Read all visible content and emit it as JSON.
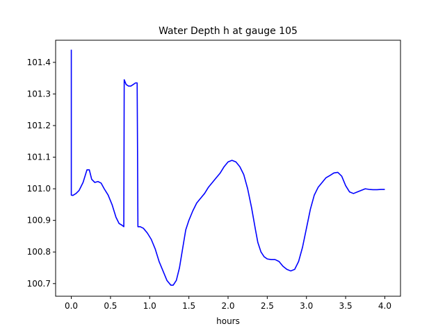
{
  "chart_data": {
    "type": "line",
    "title": "Water Depth h at gauge 105",
    "xlabel": "hours",
    "ylabel": "",
    "xlim": [
      -0.2,
      4.2
    ],
    "ylim": [
      100.66,
      101.47
    ],
    "xticks": [
      0.0,
      0.5,
      1.0,
      1.5,
      2.0,
      2.5,
      3.0,
      3.5,
      4.0
    ],
    "xtick_labels": [
      "0.0",
      "0.5",
      "1.0",
      "1.5",
      "2.0",
      "2.5",
      "3.0",
      "3.5",
      "4.0"
    ],
    "yticks": [
      100.7,
      100.8,
      100.9,
      101.0,
      101.1,
      101.2,
      101.3,
      101.4
    ],
    "ytick_labels": [
      "100.7",
      "100.8",
      "100.9",
      "101.0",
      "101.1",
      "101.2",
      "101.3",
      "101.4"
    ],
    "grid": false,
    "series": [
      {
        "color": "#0000ff",
        "x": [
          0.0,
          0.0,
          0.0,
          0.02,
          0.06,
          0.1,
          0.15,
          0.2,
          0.23,
          0.26,
          0.3,
          0.34,
          0.38,
          0.42,
          0.47,
          0.52,
          0.57,
          0.61,
          0.645,
          0.67,
          0.675,
          0.7,
          0.73,
          0.76,
          0.79,
          0.82,
          0.84,
          0.845,
          0.85,
          0.88,
          0.92,
          0.97,
          1.02,
          1.07,
          1.12,
          1.17,
          1.22,
          1.27,
          1.3,
          1.34,
          1.38,
          1.42,
          1.46,
          1.5,
          1.55,
          1.6,
          1.65,
          1.7,
          1.75,
          1.8,
          1.85,
          1.9,
          1.95,
          2.0,
          2.05,
          2.1,
          2.15,
          2.2,
          2.25,
          2.3,
          2.35,
          2.38,
          2.42,
          2.46,
          2.5,
          2.55,
          2.6,
          2.65,
          2.7,
          2.75,
          2.8,
          2.85,
          2.9,
          2.95,
          3.0,
          3.05,
          3.1,
          3.15,
          3.2,
          3.25,
          3.3,
          3.35,
          3.4,
          3.45,
          3.5,
          3.55,
          3.6,
          3.65,
          3.7,
          3.75,
          3.8,
          3.85,
          3.9,
          3.95,
          4.0
        ],
        "y": [
          101.44,
          101.2,
          100.98,
          100.979,
          100.985,
          100.995,
          101.02,
          101.06,
          101.06,
          101.03,
          101.02,
          101.023,
          101.018,
          101.0,
          100.98,
          100.95,
          100.91,
          100.89,
          100.885,
          100.88,
          101.345,
          101.33,
          101.325,
          101.325,
          101.33,
          101.335,
          101.335,
          101.12,
          100.88,
          100.88,
          100.875,
          100.86,
          100.84,
          100.81,
          100.77,
          100.74,
          100.71,
          100.695,
          100.695,
          100.71,
          100.75,
          100.81,
          100.87,
          100.9,
          100.93,
          100.955,
          100.97,
          100.985,
          101.005,
          101.02,
          101.035,
          101.05,
          101.07,
          101.085,
          101.09,
          101.085,
          101.07,
          101.045,
          101.0,
          100.94,
          100.87,
          100.83,
          100.8,
          100.785,
          100.778,
          100.776,
          100.776,
          100.77,
          100.755,
          100.745,
          100.74,
          100.745,
          100.77,
          100.815,
          100.875,
          100.935,
          100.98,
          101.005,
          101.02,
          101.035,
          101.042,
          101.05,
          101.052,
          101.04,
          101.01,
          100.99,
          100.985,
          100.99,
          100.995,
          101.0,
          100.998,
          100.997,
          100.997,
          100.998,
          100.998
        ]
      }
    ]
  }
}
